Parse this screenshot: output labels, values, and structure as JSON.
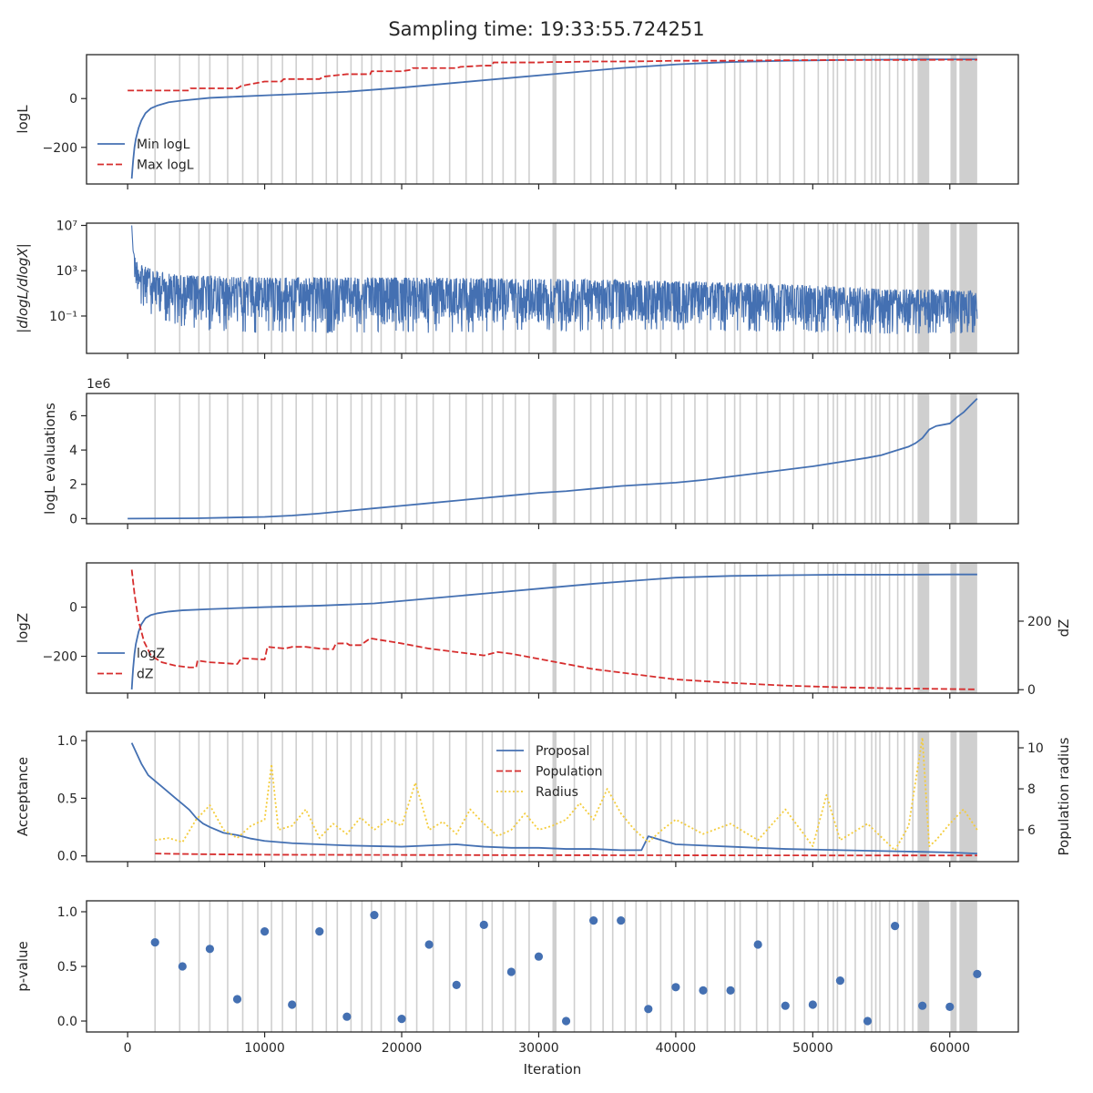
{
  "figure": {
    "title": "Sampling time: 19:33:55.724251"
  },
  "colors": {
    "blue": "#4470b2",
    "red": "#d62d2d",
    "yellow": "#f4cc3b",
    "band": "#cfcfcf",
    "axis": "#262626"
  },
  "chart_data": {
    "type": "line",
    "shared_x": {
      "label": "Iteration",
      "lim": [
        -3000,
        65000
      ],
      "ticks": [
        0,
        10000,
        20000,
        30000,
        40000,
        50000,
        60000
      ],
      "tick_labels": [
        "0",
        "10000",
        "20000",
        "30000",
        "40000",
        "50000",
        "60000"
      ]
    },
    "batch_lines": [
      2000,
      3800,
      5200,
      6000,
      7300,
      8400,
      9500,
      10500,
      11300,
      12300,
      13500,
      14500,
      15300,
      16300,
      17100,
      17800,
      18500,
      19500,
      20300,
      21100,
      22300,
      23500,
      24700,
      25900,
      26600,
      27400,
      28300,
      29300,
      31200,
      32600,
      33800,
      34700,
      35400,
      36300,
      37100,
      37900,
      38900,
      39700,
      40600,
      41400,
      42300,
      43600,
      44300,
      44700,
      45900,
      46700,
      47600,
      48600,
      49400,
      50400,
      51100,
      51500,
      51800,
      52400,
      53100,
      53800,
      54300,
      54600,
      54900,
      55600,
      56200,
      56700,
      57300,
      57700,
      58000,
      58300,
      60100,
      60400,
      60800,
      61400,
      61800
    ],
    "shaded_bands": [
      [
        31000,
        31300
      ],
      [
        57700,
        58500
      ],
      [
        60100,
        60500
      ],
      [
        60700,
        62000
      ]
    ],
    "panels": [
      {
        "ylabel": "logL",
        "ylim": [
          -350,
          180
        ],
        "yticks": [
          -200,
          0
        ],
        "ytick_labels": [
          "−200",
          "0"
        ],
        "legend": {
          "position": "lower-left",
          "entries": [
            "Min logL",
            "Max logL"
          ]
        },
        "series": [
          {
            "name": "Min logL",
            "style": "solid",
            "color": "blue",
            "x": [
              300,
              350,
              400,
              500,
              600,
              800,
              1000,
              1300,
              1700,
              2200,
              3000,
              4000,
              6000,
              8000,
              10000,
              13000,
              16000,
              20000,
              24000,
              28000,
              32000,
              36000,
              40000,
              44000,
              48000,
              52000,
              56000,
              60000,
              62000
            ],
            "y": [
              -328,
              -290,
              -255,
              -200,
              -165,
              -120,
              -90,
              -60,
              -40,
              -28,
              -15,
              -8,
              3,
              8,
              13,
              20,
              28,
              45,
              65,
              85,
              105,
              125,
              140,
              150,
              155,
              158,
              160,
              161,
              161
            ]
          },
          {
            "name": "Max logL",
            "style": "dashed",
            "color": "red",
            "x": [
              0,
              4500,
              4600,
              6000,
              8000,
              8300,
              10000,
              11200,
              11400,
              12000,
              14000,
              14300,
              16000,
              17700,
              17800,
              20000,
              20700,
              20800,
              22000,
              24000,
              24300,
              26000,
              26600,
              26700,
              29000,
              30000,
              31000,
              32000,
              34000,
              36000,
              38000,
              40000,
              44000,
              48000,
              52000,
              56000,
              60000,
              62000
            ],
            "y": [
              33,
              33,
              42,
              42,
              42,
              52,
              70,
              70,
              80,
              80,
              80,
              90,
              100,
              100,
              112,
              112,
              118,
              125,
              125,
              125,
              130,
              135,
              135,
              148,
              148,
              148,
              150,
              150,
              152,
              152,
              153,
              155,
              155,
              157,
              158,
              158,
              159,
              159
            ]
          }
        ]
      },
      {
        "ylabel": "|dlogL/dlogX|",
        "yscale": "log",
        "ylim_exp": [
          -4.3,
          7.2
        ],
        "ytick_exps": [
          -1,
          3,
          7
        ],
        "ytick_labels": [
          "10⁻¹",
          "10³",
          "10⁷"
        ],
        "series": [
          {
            "name": "",
            "style": "noisy-band",
            "color": "blue",
            "upper_x": [
              300,
              400,
              600,
              1000,
              2000,
              4000,
              10000,
              20000,
              30000,
              40000,
              50000,
              55000,
              60000,
              62000
            ],
            "upper_exp": [
              7,
              4.7,
              4.0,
              3.5,
              3.0,
              2.6,
              2.4,
              2.4,
              2.3,
              2.1,
              1.7,
              1.4,
              1.3,
              1.2
            ],
            "lower_x": [
              300,
              600,
              1000,
              2000,
              5000,
              10000,
              20000,
              30000,
              40000,
              50000,
              55000,
              60000,
              62000
            ],
            "lower_exp": [
              2.5,
              1.2,
              0.0,
              -1.2,
              -2.3,
              -2.5,
              -2.5,
              -2.4,
              -2.3,
              -2.4,
              -2.6,
              -2.6,
              -2.5
            ]
          }
        ]
      },
      {
        "ylabel": "logL evaluations",
        "offset_text": "1e6",
        "ylim": [
          -0.3,
          7.3
        ],
        "yticks": [
          0,
          2,
          4,
          6
        ],
        "ytick_labels": [
          "0",
          "2",
          "4",
          "6"
        ],
        "series": [
          {
            "name": "",
            "style": "solid",
            "color": "blue",
            "x": [
              0,
              5000,
              10000,
              12000,
              14000,
              16000,
              18000,
              20000,
              22000,
              24000,
              26000,
              28000,
              30000,
              32000,
              34000,
              36000,
              38000,
              40000,
              42000,
              44000,
              46000,
              48000,
              50000,
              52000,
              54000,
              55000,
              56000,
              57000,
              57500,
              58000,
              58500,
              59000,
              60000,
              60500,
              61000,
              61500,
              62000
            ],
            "y": [
              0,
              0.02,
              0.1,
              0.18,
              0.3,
              0.45,
              0.6,
              0.75,
              0.9,
              1.05,
              1.2,
              1.35,
              1.5,
              1.6,
              1.75,
              1.9,
              2.0,
              2.1,
              2.25,
              2.45,
              2.65,
              2.85,
              3.05,
              3.3,
              3.55,
              3.7,
              3.95,
              4.2,
              4.4,
              4.7,
              5.2,
              5.4,
              5.55,
              5.9,
              6.2,
              6.6,
              7.0
            ]
          }
        ]
      },
      {
        "ylabel": "logZ",
        "ylabel_right": "dZ",
        "ylim": [
          -350,
          180
        ],
        "yticks": [
          -200,
          0
        ],
        "ytick_labels": [
          "−200",
          "0"
        ],
        "ylim_right": [
          -10,
          370
        ],
        "yticks_right": [
          0,
          200
        ],
        "ytick_labels_right": [
          "0",
          "200"
        ],
        "legend": {
          "position": "lower-left",
          "entries": [
            "logZ",
            "dZ"
          ]
        },
        "series": [
          {
            "name": "logZ",
            "style": "solid",
            "color": "blue",
            "axis": "left",
            "x": [
              300,
              350,
              400,
              500,
              600,
              800,
              1000,
              1300,
              1700,
              2200,
              3000,
              4000,
              6000,
              8000,
              10000,
              14000,
              18000,
              22000,
              26000,
              30000,
              34000,
              38000,
              40000,
              44000,
              48000,
              52000,
              56000,
              60000,
              62000
            ],
            "y": [
              -335,
              -290,
              -250,
              -190,
              -150,
              -100,
              -70,
              -45,
              -32,
              -25,
              -18,
              -13,
              -8,
              -4,
              0,
              6,
              15,
              35,
              55,
              75,
              95,
              112,
              120,
              127,
              130,
              132,
              132,
              133,
              133
            ]
          },
          {
            "name": "dZ",
            "style": "dashed",
            "color": "red",
            "axis": "right",
            "x": [
              300,
              500,
              800,
              1200,
              1700,
              2500,
              3500,
              4500,
              5000,
              5100,
              6000,
              8000,
              8300,
              10000,
              10200,
              11500,
              12000,
              13000,
              14000,
              15000,
              15200,
              16000,
              16200,
              17000,
              17700,
              18000,
              20000,
              22000,
              24000,
              26000,
              27000,
              28000,
              30000,
              34000,
              38000,
              40000,
              44000,
              48000,
              52000,
              56000,
              60000,
              62000
            ],
            "y": [
              350,
              280,
              200,
              140,
              100,
              80,
              70,
              65,
              65,
              85,
              80,
              75,
              92,
              88,
              125,
              120,
              125,
              125,
              120,
              118,
              135,
              135,
              130,
              130,
              150,
              148,
              135,
              120,
              110,
              100,
              110,
              105,
              90,
              60,
              40,
              30,
              20,
              12,
              7,
              4,
              2,
              1
            ]
          }
        ]
      },
      {
        "ylabel": "Acceptance",
        "ylabel_right": "Population radius",
        "ylim": [
          -0.05,
          1.08
        ],
        "yticks": [
          0,
          0.5,
          1
        ],
        "ytick_labels": [
          "0.0",
          "0.5",
          "1.0"
        ],
        "ylim_right": [
          4.45,
          10.8
        ],
        "yticks_right": [
          6,
          8,
          10
        ],
        "ytick_labels_right": [
          "6",
          "8",
          "10"
        ],
        "legend": {
          "position": "upper-center",
          "entries": [
            "Proposal",
            "Population",
            "Radius"
          ]
        },
        "series": [
          {
            "name": "Proposal",
            "style": "solid",
            "color": "blue",
            "axis": "left",
            "x": [
              300,
              1000,
              1500,
              2000,
              2500,
              3000,
              3500,
              4000,
              4500,
              5000,
              5500,
              6000,
              7000,
              8000,
              9000,
              10000,
              12000,
              14000,
              16000,
              18000,
              20000,
              22000,
              24000,
              26000,
              28000,
              30000,
              32000,
              34000,
              36000,
              37500,
              38000,
              40000,
              44000,
              48000,
              52000,
              56000,
              60000,
              62000
            ],
            "y": [
              0.98,
              0.8,
              0.7,
              0.65,
              0.6,
              0.55,
              0.5,
              0.45,
              0.4,
              0.33,
              0.28,
              0.25,
              0.2,
              0.18,
              0.15,
              0.13,
              0.11,
              0.1,
              0.09,
              0.085,
              0.08,
              0.09,
              0.1,
              0.08,
              0.07,
              0.07,
              0.06,
              0.06,
              0.05,
              0.05,
              0.17,
              0.1,
              0.08,
              0.06,
              0.05,
              0.04,
              0.03,
              0.02
            ]
          },
          {
            "name": "Population",
            "style": "dashed",
            "color": "red",
            "axis": "left",
            "x": [
              2000,
              5000,
              10000,
              20000,
              30000,
              40000,
              50000,
              60000,
              62000
            ],
            "y": [
              0.02,
              0.015,
              0.01,
              0.008,
              0.006,
              0.005,
              0.004,
              0.004,
              0.004
            ]
          },
          {
            "name": "Radius",
            "style": "dotted",
            "color": "yellow",
            "axis": "right",
            "x": [
              2000,
              3000,
              4000,
              5000,
              6000,
              7000,
              8000,
              9000,
              10000,
              10500,
              11000,
              12000,
              13000,
              14000,
              15000,
              16000,
              17000,
              18000,
              19000,
              20000,
              21000,
              22000,
              23000,
              24000,
              25000,
              26000,
              27000,
              28000,
              29000,
              30000,
              31000,
              32000,
              33000,
              34000,
              35000,
              36000,
              37000,
              38000,
              39000,
              40000,
              42000,
              44000,
              46000,
              48000,
              50000,
              51000,
              52000,
              54000,
              56000,
              57000,
              58000,
              58500,
              59000,
              60000,
              61000,
              61500,
              62000
            ],
            "y": [
              5.5,
              5.6,
              5.4,
              6.5,
              7.2,
              6.0,
              5.6,
              6.2,
              6.5,
              9.2,
              6.0,
              6.2,
              7.0,
              5.6,
              6.3,
              5.8,
              6.6,
              6.0,
              6.5,
              6.2,
              8.3,
              6.0,
              6.4,
              5.8,
              7.0,
              6.3,
              5.7,
              6.0,
              6.8,
              6.0,
              6.2,
              6.5,
              7.3,
              6.5,
              8.0,
              6.8,
              6.0,
              5.4,
              6.0,
              6.5,
              5.8,
              6.3,
              5.5,
              7.0,
              5.2,
              7.7,
              5.5,
              6.3,
              5.0,
              6.2,
              10.5,
              5.2,
              5.5,
              6.3,
              7.0,
              6.5,
              6.0
            ]
          }
        ]
      },
      {
        "ylabel": "p-value",
        "ylim": [
          -0.1,
          1.1
        ],
        "yticks": [
          0,
          0.5,
          1
        ],
        "ytick_labels": [
          "0.0",
          "0.5",
          "1.0"
        ],
        "series": [
          {
            "name": "",
            "style": "points",
            "color": "blue",
            "x": [
              2000,
              4000,
              6000,
              8000,
              10000,
              12000,
              14000,
              16000,
              18000,
              20000,
              22000,
              24000,
              26000,
              28000,
              30000,
              32000,
              34000,
              36000,
              38000,
              40000,
              42000,
              44000,
              46000,
              48000,
              50000,
              52000,
              54000,
              56000,
              58000,
              60000,
              62000
            ],
            "y": [
              0.72,
              0.5,
              0.66,
              0.2,
              0.82,
              0.15,
              0.82,
              0.04,
              0.97,
              0.02,
              0.7,
              0.33,
              0.88,
              0.45,
              0.59,
              0.0,
              0.92,
              0.92,
              0.11,
              0.31,
              0.28,
              0.28,
              0.7,
              0.14,
              0.15,
              0.37,
              0.0,
              0.87,
              0.14,
              0.13,
              0.43
            ]
          }
        ]
      }
    ]
  }
}
